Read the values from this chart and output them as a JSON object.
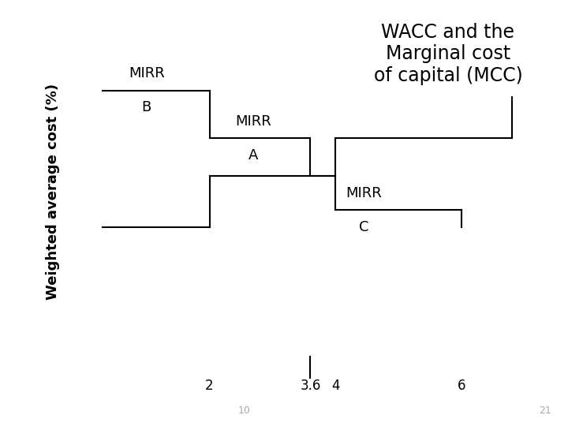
{
  "title": "WACC and the\nMarginal cost\nof capital (MCC)",
  "ylabel": "Weighted average cost (%)",
  "xticks": [
    2,
    3.6,
    4,
    6
  ],
  "xtick_labels": [
    "2",
    "3.6",
    "4",
    "6"
  ],
  "page_numbers": [
    "10",
    "21"
  ],
  "line_color": "#000000",
  "bg_color": "#ffffff",
  "title_fontsize": 17,
  "ylabel_fontsize": 13,
  "label_fontsize": 13,
  "figsize": [
    7.2,
    5.4
  ],
  "dpi": 100,
  "xlim": [
    -0.3,
    7.5
  ],
  "ylim": [
    0.0,
    1.05
  ]
}
